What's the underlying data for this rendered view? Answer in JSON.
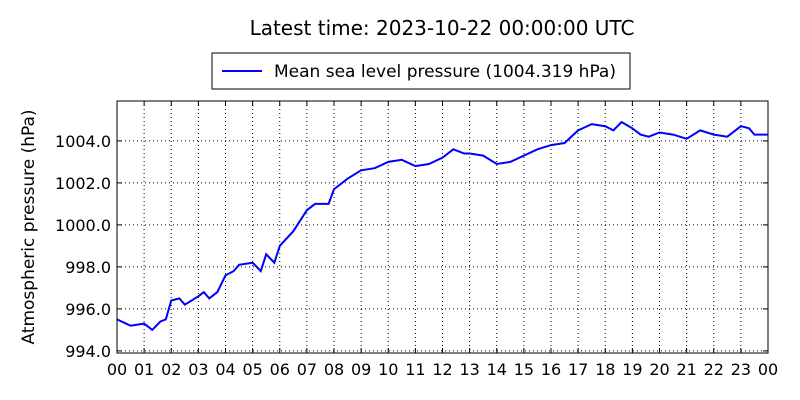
{
  "chart_data": {
    "type": "line",
    "title": "Latest time: 2023-10-22 00:00:00 UTC",
    "y_label": "Atmospheric pressure (hPa)",
    "x": [
      0,
      0.5,
      1,
      1.3,
      1.6,
      1.8,
      2,
      2.3,
      2.5,
      3,
      3.2,
      3.4,
      3.7,
      4,
      4.3,
      4.5,
      5,
      5.3,
      5.5,
      5.8,
      6,
      6.5,
      7,
      7.3,
      7.8,
      8,
      8.5,
      9,
      9.5,
      10,
      10.5,
      11,
      11.5,
      12,
      12.4,
      12.8,
      13,
      13.5,
      14,
      14.5,
      15,
      15.5,
      16,
      16.5,
      17,
      17.5,
      18,
      18.3,
      18.6,
      19,
      19.3,
      19.6,
      20,
      20.5,
      21,
      21.5,
      22,
      22.5,
      23,
      23.3,
      23.5,
      24
    ],
    "series": [
      {
        "name": "Mean sea level pressure (1004.319 hPa)",
        "color": "#0000ff",
        "values": [
          995.5,
          995.2,
          995.3,
          995.0,
          995.4,
          995.5,
          996.4,
          996.5,
          996.2,
          996.6,
          996.8,
          996.5,
          996.8,
          997.6,
          997.8,
          998.1,
          998.2,
          997.8,
          998.6,
          998.2,
          999.0,
          999.7,
          1000.7,
          1001.0,
          1001.0,
          1001.7,
          1002.2,
          1002.6,
          1002.7,
          1003.0,
          1003.1,
          1002.8,
          1002.9,
          1003.2,
          1003.6,
          1003.4,
          1003.4,
          1003.3,
          1002.9,
          1003.0,
          1003.3,
          1003.6,
          1003.8,
          1003.9,
          1004.5,
          1004.8,
          1004.7,
          1004.5,
          1004.9,
          1004.6,
          1004.3,
          1004.2,
          1004.4,
          1004.3,
          1004.1,
          1004.5,
          1004.3,
          1004.2,
          1004.7,
          1004.6,
          1004.3,
          1004.3
        ]
      }
    ],
    "xlim": [
      0,
      24
    ],
    "xticks": [
      {
        "value": 0,
        "label": "00"
      },
      {
        "value": 1,
        "label": "01"
      },
      {
        "value": 2,
        "label": "02"
      },
      {
        "value": 3,
        "label": "03"
      },
      {
        "value": 4,
        "label": "04"
      },
      {
        "value": 5,
        "label": "05"
      },
      {
        "value": 6,
        "label": "06"
      },
      {
        "value": 7,
        "label": "07"
      },
      {
        "value": 8,
        "label": "08"
      },
      {
        "value": 9,
        "label": "09"
      },
      {
        "value": 10,
        "label": "10"
      },
      {
        "value": 11,
        "label": "11"
      },
      {
        "value": 12,
        "label": "12"
      },
      {
        "value": 13,
        "label": "13"
      },
      {
        "value": 14,
        "label": "14"
      },
      {
        "value": 15,
        "label": "15"
      },
      {
        "value": 16,
        "label": "16"
      },
      {
        "value": 17,
        "label": "17"
      },
      {
        "value": 18,
        "label": "18"
      },
      {
        "value": 19,
        "label": "19"
      },
      {
        "value": 20,
        "label": "20"
      },
      {
        "value": 21,
        "label": "21"
      },
      {
        "value": 22,
        "label": "22"
      },
      {
        "value": 23,
        "label": "23"
      },
      {
        "value": 24,
        "label": "00"
      }
    ],
    "ylim": [
      993.9,
      1005.9
    ],
    "yticks": [
      {
        "value": 994,
        "label": "994.0"
      },
      {
        "value": 996,
        "label": "996.0"
      },
      {
        "value": 998,
        "label": "998.0"
      },
      {
        "value": 1000,
        "label": "1000.0"
      },
      {
        "value": 1002,
        "label": "1002.0"
      },
      {
        "value": 1004,
        "label": "1004.0"
      }
    ],
    "grid": true
  }
}
